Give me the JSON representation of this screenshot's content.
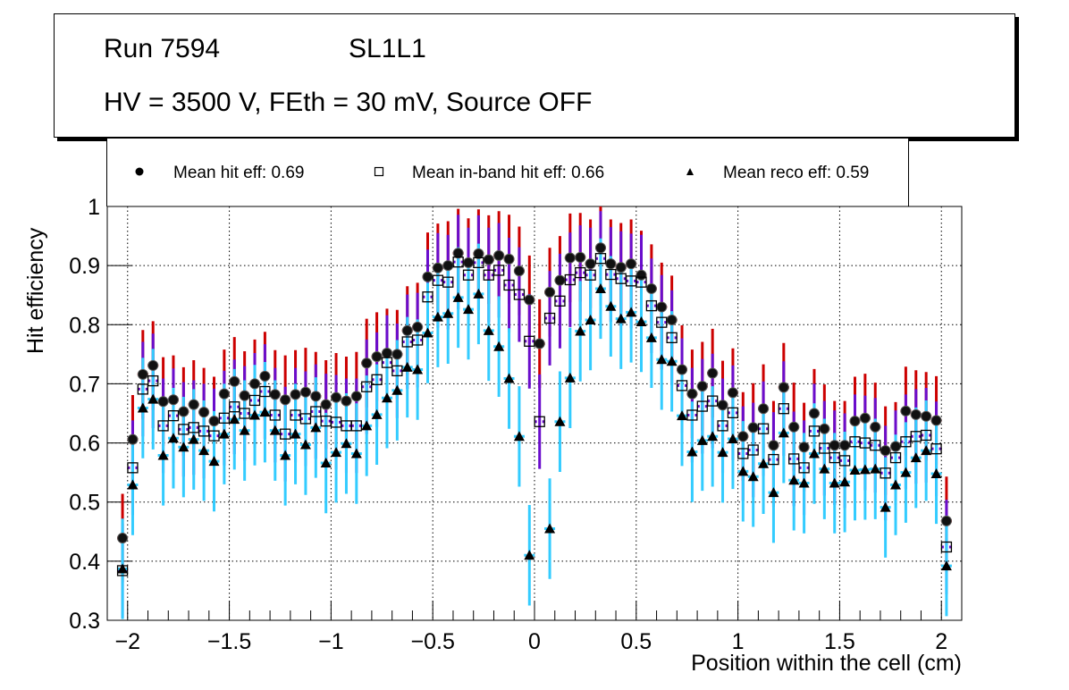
{
  "title": {
    "run": "Run 7594",
    "layer": "SL1L1",
    "conditions": "HV = 3500 V, FEth = 30 mV, Source OFF"
  },
  "legend": [
    {
      "label": "Mean hit  eff: 0.69",
      "marker": "filled-circle"
    },
    {
      "label": "Mean in-band hit eff: 0.66",
      "marker": "open-square"
    },
    {
      "label": "Mean reco eff: 0.59",
      "marker": "filled-triangle"
    }
  ],
  "chart_data": {
    "type": "scatter",
    "title": "Run 7594 SL1L1 — HV = 3500 V, FEth = 30 mV, Source OFF",
    "xlabel": "Position within the cell (cm)",
    "ylabel": "Hit efficiency",
    "xlim": [
      -2.1,
      2.1
    ],
    "ylim": [
      0.3,
      1.0
    ],
    "grid": true,
    "legend_position": "top",
    "x_ticks": [
      -2,
      -1.5,
      -1,
      -0.5,
      0,
      0.5,
      1,
      1.5,
      2
    ],
    "x_tick_labels": [
      "−2",
      "−1.5",
      "−1",
      "−0.5",
      "0",
      "0.5",
      "1",
      "1.5",
      "2"
    ],
    "y_ticks": [
      0.3,
      0.4,
      0.5,
      0.6,
      0.7,
      0.8,
      0.9,
      1.0
    ],
    "y_tick_labels": [
      "0.3",
      "0.4",
      "0.5",
      "0.6",
      "0.7",
      "0.8",
      "0.9",
      "1"
    ],
    "x": [
      -2.025,
      -1.975,
      -1.925,
      -1.875,
      -1.825,
      -1.775,
      -1.725,
      -1.675,
      -1.625,
      -1.575,
      -1.525,
      -1.475,
      -1.425,
      -1.375,
      -1.325,
      -1.275,
      -1.225,
      -1.175,
      -1.125,
      -1.075,
      -1.025,
      -0.975,
      -0.925,
      -0.875,
      -0.825,
      -0.775,
      -0.725,
      -0.675,
      -0.625,
      -0.575,
      -0.525,
      -0.475,
      -0.425,
      -0.375,
      -0.325,
      -0.275,
      -0.225,
      -0.175,
      -0.125,
      -0.075,
      -0.025,
      0.025,
      0.075,
      0.125,
      0.175,
      0.225,
      0.275,
      0.325,
      0.375,
      0.425,
      0.475,
      0.525,
      0.575,
      0.625,
      0.675,
      0.725,
      0.775,
      0.825,
      0.875,
      0.925,
      0.975,
      1.025,
      1.075,
      1.125,
      1.175,
      1.225,
      1.275,
      1.325,
      1.375,
      1.425,
      1.475,
      1.525,
      1.575,
      1.625,
      1.675,
      1.725,
      1.775,
      1.825,
      1.875,
      1.925,
      1.975,
      2.025
    ],
    "series": [
      {
        "name": "Mean hit  eff: 0.69",
        "marker": "filled-circle",
        "error_color": "#cc0000",
        "error": 0.075,
        "values": [
          0.439,
          0.606,
          0.716,
          0.731,
          0.67,
          0.673,
          0.653,
          0.665,
          0.652,
          0.637,
          0.683,
          0.704,
          0.68,
          0.7,
          0.713,
          0.682,
          0.673,
          0.682,
          0.686,
          0.679,
          0.665,
          0.677,
          0.671,
          0.679,
          0.735,
          0.746,
          0.752,
          0.75,
          0.79,
          0.796,
          0.881,
          0.896,
          0.9,
          0.921,
          0.905,
          0.92,
          0.91,
          0.917,
          0.911,
          0.891,
          0.842,
          0.768,
          0.855,
          0.875,
          0.913,
          0.914,
          0.903,
          0.93,
          0.903,
          0.897,
          0.903,
          0.884,
          0.861,
          0.83,
          0.808,
          0.724,
          0.683,
          0.696,
          0.718,
          0.664,
          0.685,
          0.611,
          0.626,
          0.658,
          0.596,
          0.694,
          0.627,
          0.593,
          0.65,
          0.624,
          0.596,
          0.596,
          0.637,
          0.642,
          0.627,
          0.587,
          0.594,
          0.654,
          0.648,
          0.645,
          0.638,
          0.468
        ]
      },
      {
        "name": "Mean in-band hit eff: 0.66",
        "marker": "open-square",
        "error_color": "#6a0dcc",
        "error": 0.08,
        "values": [
          0.384,
          0.558,
          0.691,
          0.705,
          0.629,
          0.646,
          0.623,
          0.626,
          0.62,
          0.612,
          0.642,
          0.661,
          0.65,
          0.672,
          0.687,
          0.647,
          0.615,
          0.647,
          0.641,
          0.653,
          0.637,
          0.635,
          0.629,
          0.629,
          0.695,
          0.707,
          0.736,
          0.722,
          0.771,
          0.774,
          0.847,
          0.875,
          0.872,
          0.906,
          0.884,
          0.905,
          0.884,
          0.892,
          0.867,
          0.851,
          0.772,
          0.636,
          0.811,
          0.84,
          0.876,
          0.888,
          0.884,
          0.912,
          0.885,
          0.878,
          0.874,
          0.872,
          0.832,
          0.804,
          0.778,
          0.697,
          0.647,
          0.662,
          0.671,
          0.629,
          0.651,
          0.582,
          0.588,
          0.624,
          0.572,
          0.658,
          0.573,
          0.558,
          0.62,
          0.591,
          0.575,
          0.57,
          0.602,
          0.6,
          0.596,
          0.549,
          0.575,
          0.602,
          0.611,
          0.613,
          0.59,
          0.424
        ]
      },
      {
        "name": "Mean reco eff: 0.59",
        "marker": "filled-triangle",
        "error_color": "#33ccff",
        "error": 0.085,
        "values": [
          0.387,
          0.529,
          0.659,
          0.674,
          0.579,
          0.608,
          0.593,
          0.606,
          0.587,
          0.569,
          0.615,
          0.64,
          0.621,
          0.647,
          0.652,
          0.621,
          0.579,
          0.615,
          0.597,
          0.626,
          0.566,
          0.584,
          0.599,
          0.582,
          0.629,
          0.648,
          0.676,
          0.689,
          0.728,
          0.724,
          0.786,
          0.813,
          0.819,
          0.846,
          0.826,
          0.852,
          0.79,
          0.763,
          0.709,
          0.611,
          0.41,
          null,
          0.455,
          0.636,
          0.71,
          0.789,
          0.808,
          0.861,
          0.831,
          0.81,
          0.821,
          0.805,
          0.778,
          0.741,
          0.738,
          0.646,
          0.585,
          0.604,
          0.611,
          0.584,
          0.607,
          0.552,
          0.543,
          0.565,
          0.516,
          0.617,
          0.537,
          0.532,
          0.582,
          0.556,
          0.532,
          0.534,
          0.554,
          0.555,
          0.556,
          0.491,
          0.529,
          0.55,
          0.575,
          0.587,
          0.548,
          0.392
        ]
      }
    ]
  }
}
